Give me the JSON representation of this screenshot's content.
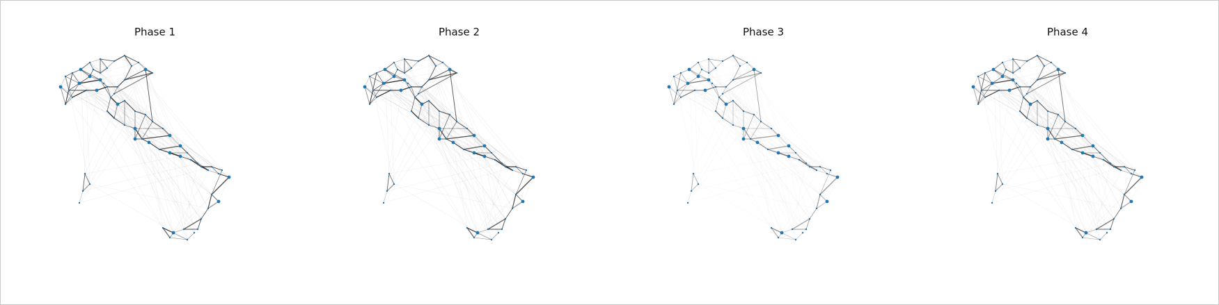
{
  "figure": {
    "panels": [
      {
        "title": "Phase 1",
        "edge_intensity": 1.0
      },
      {
        "title": "Phase 2",
        "edge_intensity": 1.0
      },
      {
        "title": "Phase 3",
        "edge_intensity": 0.55
      },
      {
        "title": "Phase 4",
        "edge_intensity": 0.85
      }
    ],
    "colors": {
      "node": "#1f77b4",
      "edge": "#000000",
      "border": "#c8c8c8"
    }
  }
}
